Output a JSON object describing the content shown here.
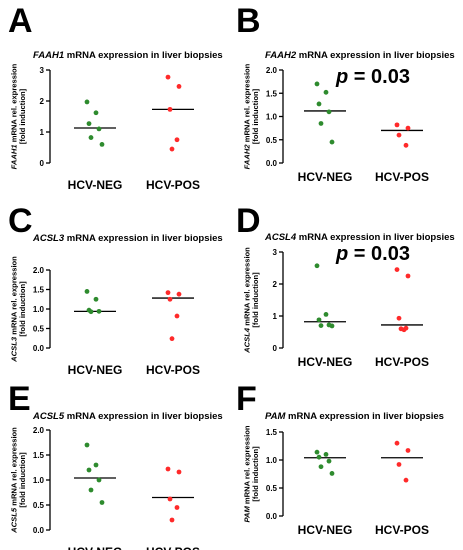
{
  "chart_data": [
    {
      "type": "scatter",
      "panel_letter": "A",
      "title": {
        "gene": "FAAH1",
        "rest": " mRNA expression in liver biopsies"
      },
      "ylabel": {
        "gene": "FAAH1",
        "line1_rest": " mRNA rel. expression",
        "line2": "[fold induction]"
      },
      "categories": [
        "HCV-NEG",
        "HCV-POS"
      ],
      "ylim": [
        0,
        3
      ],
      "yticks": [
        0,
        1,
        2,
        3
      ],
      "ytick_labels": [
        "0",
        "1",
        "2",
        "3"
      ],
      "series": [
        {
          "values": [
            1.97,
            1.62,
            1.27,
            1.1,
            0.82,
            0.6
          ],
          "mean": 1.13,
          "color": "#2e8b2e"
        },
        {
          "values": [
            2.77,
            2.47,
            1.73,
            0.75,
            0.45
          ],
          "mean": 1.73,
          "color": "#ff2a2a"
        }
      ]
    },
    {
      "type": "scatter",
      "panel_letter": "B",
      "title": {
        "gene": "FAAH2",
        "rest": " mRNA expression in liver biopsies"
      },
      "ylabel": {
        "gene": "FAAH2",
        "line1_rest": " mRNA rel. expression",
        "line2": "[fold induction]"
      },
      "categories": [
        "HCV-NEG",
        "HCV-POS"
      ],
      "ylim": [
        0,
        2
      ],
      "yticks": [
        0,
        0.5,
        1,
        1.5,
        2
      ],
      "ytick_labels": [
        "0.0",
        "0.5",
        "1.0",
        "1.5",
        "2.0"
      ],
      "annotation": {
        "p": "p",
        "rest": " = 0.03"
      },
      "series": [
        {
          "values": [
            1.7,
            1.52,
            1.27,
            1.1,
            0.85,
            0.45
          ],
          "mean": 1.12,
          "color": "#2e8b2e"
        },
        {
          "values": [
            0.82,
            0.75,
            0.6,
            0.38
          ],
          "mean": 0.7,
          "color": "#ff2a2a"
        }
      ]
    },
    {
      "type": "scatter",
      "panel_letter": "C",
      "title": {
        "gene": "ACSL3",
        "rest": " mRNA expression in liver biopsies"
      },
      "ylabel": {
        "gene": "ACSL3",
        "line1_rest": " mRNA rel. expression",
        "line2": "[fold induction]"
      },
      "categories": [
        "HCV-NEG",
        "HCV-POS"
      ],
      "ylim": [
        0,
        2
      ],
      "yticks": [
        0,
        0.5,
        1,
        1.5,
        2
      ],
      "ytick_labels": [
        "0.0",
        "0.5",
        "1.0",
        "1.5",
        "2.0"
      ],
      "series": [
        {
          "values": [
            1.45,
            1.25,
            0.97,
            0.94,
            0.93
          ],
          "mean": 0.94,
          "color": "#2e8b2e"
        },
        {
          "values": [
            1.42,
            1.38,
            1.25,
            0.82,
            0.24
          ],
          "mean": 1.28,
          "color": "#ff2a2a"
        }
      ]
    },
    {
      "type": "scatter",
      "panel_letter": "D",
      "title": {
        "gene": "ACSL4",
        "rest": " mRNA expression in liver biopsies"
      },
      "ylabel": {
        "gene": "ACSL4",
        "line1_rest": " mRNA rel. expression",
        "line2": "[fold induction]"
      },
      "categories": [
        "HCV-NEG",
        "HCV-POS"
      ],
      "ylim": [
        0,
        3
      ],
      "yticks": [
        0,
        1,
        2,
        3
      ],
      "ytick_labels": [
        "0",
        "1",
        "2",
        "3"
      ],
      "annotation": {
        "p": "p",
        "rest": " = 0.03"
      },
      "series": [
        {
          "values": [
            2.57,
            1.05,
            0.88,
            0.72,
            0.7,
            0.69
          ],
          "mean": 0.82,
          "color": "#2e8b2e"
        },
        {
          "values": [
            2.45,
            2.25,
            0.93,
            0.62,
            0.6,
            0.57
          ],
          "mean": 0.72,
          "color": "#ff2a2a"
        }
      ]
    },
    {
      "type": "scatter",
      "panel_letter": "E",
      "title": {
        "gene": "ACSL5",
        "rest": " mRNA expression in liver biopsies"
      },
      "ylabel": {
        "gene": "ACSL5",
        "line1_rest": " mRNA rel. expression",
        "line2": "[fold induction]"
      },
      "categories": [
        "HCV-NEG",
        "HCV-POS"
      ],
      "ylim": [
        0,
        2
      ],
      "yticks": [
        0,
        0.5,
        1,
        1.5,
        2
      ],
      "ytick_labels": [
        "0.0",
        "0.5",
        "1.0",
        "1.5",
        "2.0"
      ],
      "series": [
        {
          "values": [
            1.7,
            1.3,
            1.2,
            1.0,
            0.8,
            0.55
          ],
          "mean": 1.04,
          "color": "#2e8b2e"
        },
        {
          "values": [
            1.22,
            1.16,
            0.62,
            0.45,
            0.2
          ],
          "mean": 0.65,
          "color": "#ff2a2a"
        }
      ]
    },
    {
      "type": "scatter",
      "panel_letter": "F",
      "title": {
        "gene": "PAM",
        "rest": " mRNA expression in liver biopsies"
      },
      "ylabel": {
        "gene": "PAM",
        "line1_rest": " mRNA rel. expression",
        "line2": "[fold induction]"
      },
      "categories": [
        "HCV-NEG",
        "HCV-POS"
      ],
      "ylim": [
        0,
        1.5
      ],
      "yticks": [
        0,
        0.5,
        1,
        1.5
      ],
      "ytick_labels": [
        "0.0",
        "0.5",
        "1.0",
        "1.5"
      ],
      "series": [
        {
          "values": [
            1.14,
            1.1,
            1.05,
            0.98,
            0.88,
            0.76
          ],
          "mean": 1.04,
          "color": "#2e8b2e"
        },
        {
          "values": [
            1.3,
            1.17,
            0.92,
            0.64
          ],
          "mean": 1.04,
          "color": "#ff2a2a"
        }
      ]
    }
  ]
}
